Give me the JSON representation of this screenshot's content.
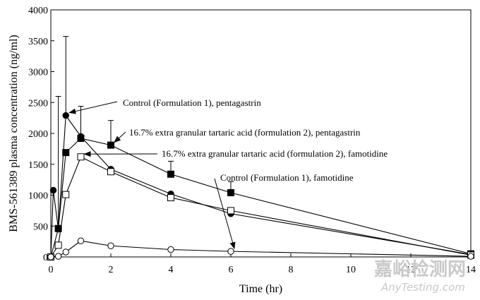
{
  "chart_data": {
    "type": "line",
    "xlabel": "Time (hr)",
    "ylabel": "BMS-561389 plasma concentration (ng/ml)",
    "xlim": [
      0,
      14
    ],
    "ylim": [
      0,
      4000
    ],
    "xticks": [
      0,
      2,
      4,
      6,
      8,
      10,
      12,
      14
    ],
    "yticks": [
      0,
      500,
      1000,
      1500,
      2000,
      2500,
      3000,
      3500,
      4000
    ],
    "grid": false,
    "series": [
      {
        "name": "Control (Formulation 1), pentagastrin",
        "marker": "filled-circle",
        "x": [
          0,
          0.083,
          0.25,
          0.5,
          1,
          2,
          4,
          6,
          14
        ],
        "y": [
          0,
          1080,
          450,
          2290,
          1950,
          1420,
          1020,
          700,
          40
        ],
        "error": [
          0,
          0,
          2150,
          1280,
          0,
          0,
          0,
          0,
          0
        ]
      },
      {
        "name": "16.7% extra granular tartaric acid (formulation 2), pentagastrin",
        "marker": "filled-square",
        "x": [
          0,
          0.25,
          0.5,
          1,
          2,
          4,
          6,
          14
        ],
        "y": [
          0,
          460,
          1690,
          1920,
          1810,
          1340,
          1040,
          50
        ],
        "error": [
          0,
          0,
          0,
          520,
          400,
          210,
          180,
          0
        ]
      },
      {
        "name": "16.7% extra granular tartaric acid (formulation 2), famotidine",
        "marker": "open-square",
        "x": [
          0,
          0.25,
          0.5,
          1,
          2,
          4,
          6,
          14
        ],
        "y": [
          0,
          190,
          1010,
          1620,
          1380,
          960,
          750,
          30
        ],
        "error": [
          0,
          0,
          0,
          0,
          0,
          0,
          0,
          0
        ]
      },
      {
        "name": "Control (Formulation 1), famotidine",
        "marker": "open-circle",
        "x": [
          0,
          0.25,
          0.5,
          1,
          2,
          4,
          6,
          14
        ],
        "y": [
          0,
          10,
          80,
          260,
          180,
          120,
          90,
          10
        ],
        "error": [
          0,
          0,
          0,
          0,
          0,
          0,
          0,
          0
        ]
      }
    ],
    "annotations": [
      {
        "text": "Control (Formulation 1), pentagastrin",
        "target_series": 0
      },
      {
        "text": "16.7% extra granular tartaric acid (formulation 2), pentagastrin",
        "target_series": 1
      },
      {
        "text": "16.7% extra granular tartaric acid (formulation 2), famotidine",
        "target_series": 2
      },
      {
        "text": "Control (Formulation 1), famotidine",
        "target_series": 3
      }
    ]
  },
  "watermark": {
    "cn": "嘉峪检测网",
    "en": "AnyTesting.com"
  }
}
